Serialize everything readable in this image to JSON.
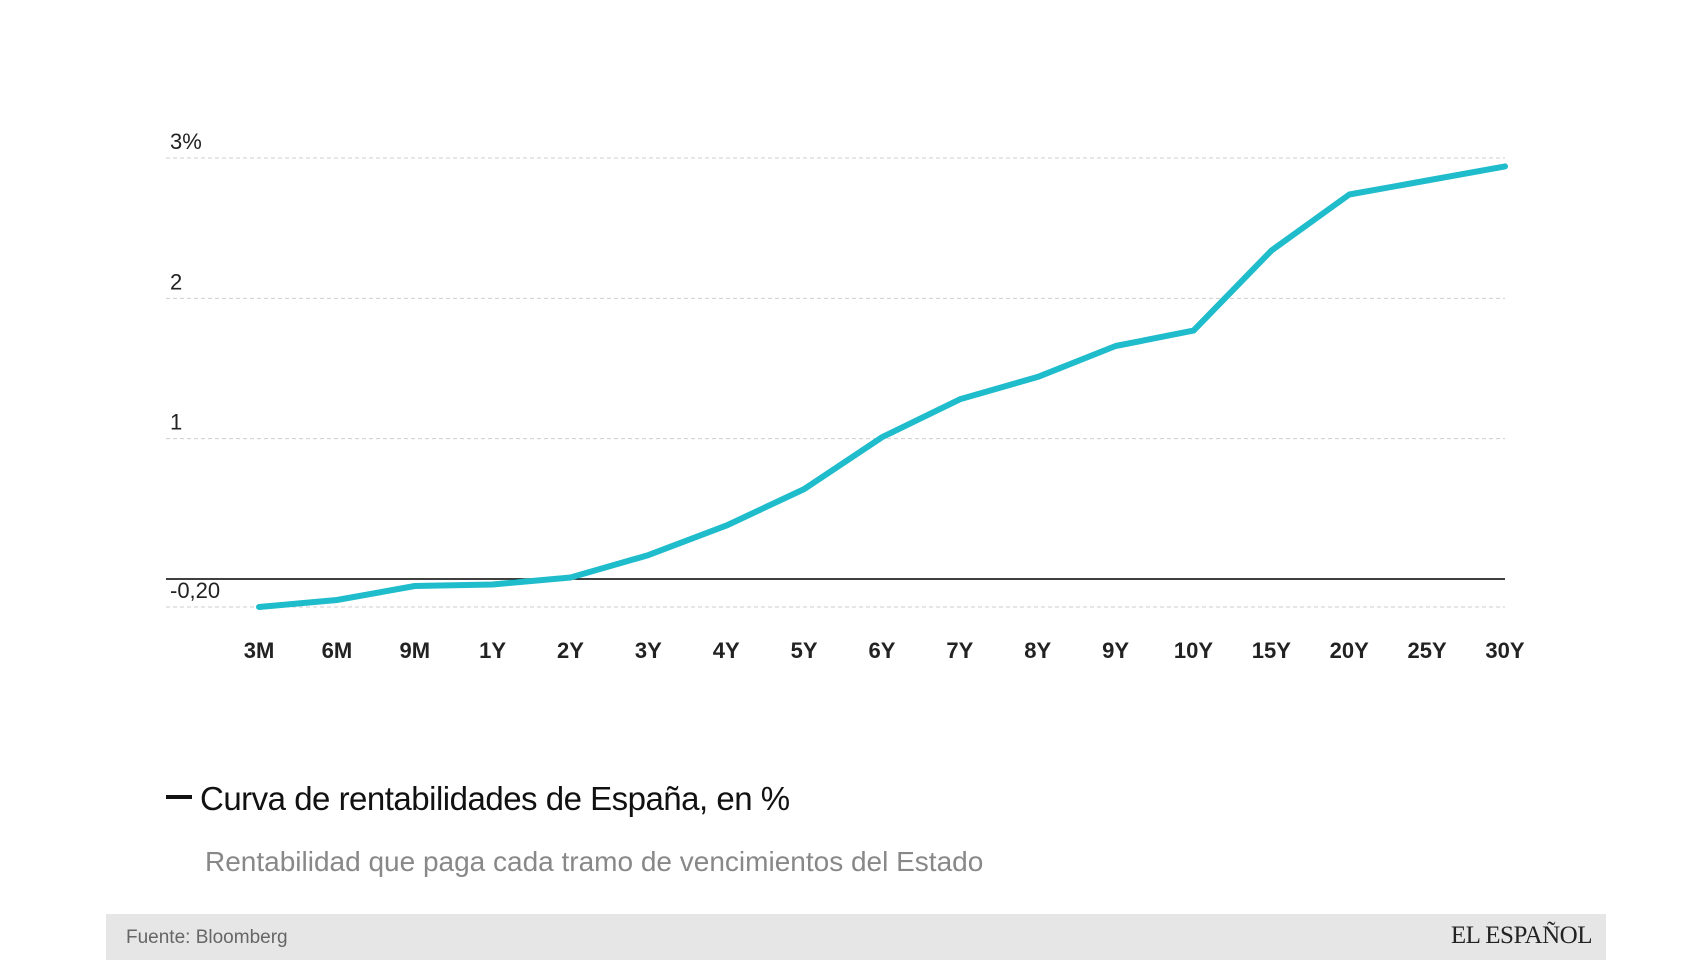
{
  "chart_data": {
    "type": "line",
    "title": "Curva de rentabilidades de España, en %",
    "subtitle": "Rentabilidad que paga cada tramo de vencimientos del Estado",
    "categories": [
      "3M",
      "6M",
      "9M",
      "1Y",
      "2Y",
      "3Y",
      "4Y",
      "5Y",
      "6Y",
      "7Y",
      "8Y",
      "9Y",
      "10Y",
      "15Y",
      "20Y",
      "25Y",
      "30Y"
    ],
    "series": [
      {
        "name": "Curva de rentabilidades de España, en %",
        "color": "#1fbccb",
        "values": [
          -0.2,
          -0.15,
          -0.05,
          -0.04,
          0.01,
          0.17,
          0.38,
          0.64,
          1.01,
          1.28,
          1.44,
          1.66,
          1.77,
          2.34,
          2.74,
          2.84,
          2.94
        ]
      }
    ],
    "yticks": [
      {
        "value": -0.2,
        "label": "-0,20"
      },
      {
        "value": 1,
        "label": "1"
      },
      {
        "value": 2,
        "label": "2"
      },
      {
        "value": 3,
        "label": "3%"
      }
    ],
    "ylim": [
      -0.2,
      3
    ],
    "zero_line": true,
    "grid": true,
    "xlabel": "",
    "ylabel": ""
  },
  "legend": {
    "label": "Curva de rentabilidades de España, en %"
  },
  "subtitle": "Rentabilidad que paga cada tramo de vencimientos del Estado",
  "footer": {
    "source": "Fuente: Bloomberg",
    "brand": "EL ESPAÑOL"
  }
}
